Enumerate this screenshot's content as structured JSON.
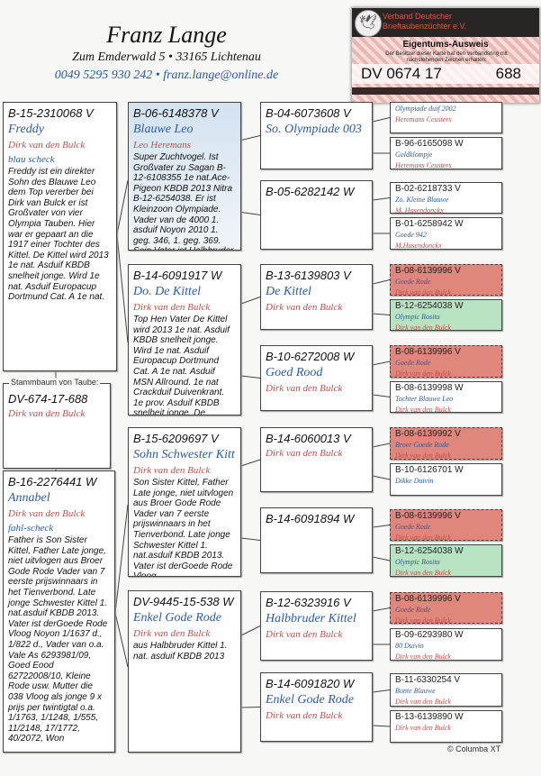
{
  "header": {
    "name": "Franz Lange",
    "address": "Zum Emderwald 5 • 33165  Lichtenau",
    "contact": "0049 5295 930 242 • franz.lange@online.de"
  },
  "card": {
    "org_line1": "Verband Deutscher",
    "org_line2": "Brieftaubenzüchter e.V.",
    "title": "Eigentums-Ausweis",
    "subtitle": "Der Besitzer dieser Karte hat den Verbandsring mit nachstehenden Zeichen erhalten:",
    "ring_prefix": "DV 0674 17",
    "ring_number": "688",
    "logo_icon": "pigeon-logo"
  },
  "subject": {
    "label": "Stammbaum von Taube:",
    "ring": "DV-674-17-688",
    "breeder": "Dirk van den Bulck"
  },
  "father": {
    "ring": "B-15-2310068 V",
    "name": "Freddy",
    "breeder": "Dirk van den Bulck",
    "color": "blau scheck",
    "text": "Freddy ist ein direkter Sohn des Blauwe Leo dem Top vererber bei Dirk van Bulck er ist Großvater von vier Olympia Tauben. Hier war er gepaart an die 1917 einer Tochter des Kittel. De Kittel wird 2013 1e nat. Asduif KBDB snelheit jonge. Wird 1e nat. Asduif Europacup Dortmund Cat. A 1e nat."
  },
  "mother": {
    "ring": "B-16-2276441 W",
    "name": "Annabel",
    "breeder": "Dirk van den Bulck",
    "color": "fahl-scheck",
    "text": "Father is Son Sister Kittel, Father Late jonge, niet uitvlogen  aus  Broer Gode Rode Vader van 7 eerste prijswinnaars in het Tienverbond. Late jonge Schwester Kittel 1. nat.asduif KBDB 2013. Vater ist derGoede Rode Vloog Noyon 1/1637 d., 1/822 d., Vader van o.a. Vale As 6293981/09, Goed Eood 62722008/10, Kleine Rode usw. Mutter die 038 Vloog als jonge 9 x prijs per twintigtal o.a. 1/1763, 1/1248, 1/555, 11/2148, 17/1772, 40/2072, Won"
  },
  "grandparents": [
    {
      "ring": "B-06-6148378 V",
      "name": "Blauwe Leo",
      "breeder": "Leo Heremans",
      "text": "Super Zuchtvogel. Ist Großvater zu Sagan B-12-6108355 1e nat.Ace-Pigeon KBDB 2013 Nitra B-12-6254038. Er ist Kleinzoon Olympiade. Vader van de 4000 1. asduif Noyon 2010 1. geg. 346, 1. geg. 369. Sein Vater ist Halbbruder"
    },
    {
      "ring": "B-14-6091917 W",
      "name": "Do. De Kittel",
      "breeder": "Dirk van den Bulck",
      "text": "Top Hen Vater De Kittel wird 2013 1e nat. Asduif KBDB snelheit jonge. Wird 1e nat. Asduif Europacup Dortmund Cat. A 1e nat. Asduif MSN Allround. 1e nat Crackduif Duivenkrant. 1e prov. Asduif KBDB snelheit jonge. De"
    },
    {
      "ring": "B-15-6209697 V",
      "name": "Sohn Schwester Kitt",
      "breeder": "Dirk van den Bulck",
      "text": "Son Sister Kittel, Father Late jonge, niet uitvlogen  aus  Broer Gode Rode Vader van 7 eerste prijswinnaars in het Tienverbond. Late jonge Schwester Kittel 1. nat.asduif KBDB 2013. Vater ist derGoede Rode Vloog"
    },
    {
      "ring": "DV-9445-15-538 W",
      "name": "Enkel Gode Rode",
      "breeder": "Dirk van den Bulck",
      "text": "aus Halbbruder Kittel 1. nat. asduif KBDB 2013"
    }
  ],
  "great_grandparents": [
    {
      "ring": "B-04-6073608 V",
      "name": "So. Olympiade 003",
      "breeder": ""
    },
    {
      "ring": "B-05-6282142 W",
      "name": "",
      "breeder": ""
    },
    {
      "ring": "B-13-6139803 V",
      "name": "De Kittel",
      "breeder": "Dirk van den Bulck"
    },
    {
      "ring": "B-10-6272008 W",
      "name": "Goed Rood",
      "breeder": "Dirk van den Bulck"
    },
    {
      "ring": "B-14-6060013 V",
      "name": "",
      "breeder": "Dirk van den Bulck"
    },
    {
      "ring": "B-14-6091894 W",
      "name": "",
      "breeder": ""
    },
    {
      "ring": "B-12-6323916 V",
      "name": "Halbbruder Kittel",
      "breeder": "Dirk van den Bulck"
    },
    {
      "ring": "B-14-6091820 W",
      "name": "Enkel Gode Rode",
      "breeder": "Dirk van den Bulck"
    }
  ],
  "great_great_grandparents": [
    {
      "ring": "",
      "name": "Olympiade duif 2002",
      "breeder": "Heremans Ceusters",
      "highlight": "none"
    },
    {
      "ring": "B-96-6165098 W",
      "name": "Goldklompje",
      "breeder": "Heremans Ceusters",
      "highlight": "none"
    },
    {
      "ring": "B-02-6218733 V",
      "name": "Zo. Kleine Blauwe",
      "breeder": "M. Hasendonckx",
      "highlight": "none"
    },
    {
      "ring": "B-01-6258942 W",
      "name": "Goede 942",
      "breeder": "M.Hasendonckx",
      "highlight": "none"
    },
    {
      "ring": "B-08-6139996 V",
      "name": "Goede Rode",
      "breeder": "Dirk van den Bulck",
      "highlight": "red"
    },
    {
      "ring": "B-12-6254038 W",
      "name": "Olympic Rosita",
      "breeder": "Dirk van den Bulck",
      "highlight": "green"
    },
    {
      "ring": "B-08-6139996 V",
      "name": "Goede Rode",
      "breeder": "Dirk van den Bulck",
      "highlight": "red"
    },
    {
      "ring": "B-08-6139998 W",
      "name": "Tochter Blauwe Leo",
      "breeder": "Dirk van den Bulck",
      "highlight": "none"
    },
    {
      "ring": "B-08-6139992 V",
      "name": "Broer Goede Rode",
      "breeder": "Dirk van den Bulck",
      "highlight": "red"
    },
    {
      "ring": "B-10-6126701 W",
      "name": "Dikke Duivin",
      "breeder": "",
      "highlight": "none"
    },
    {
      "ring": "B-08-6139996 V",
      "name": "Goede Rode",
      "breeder": "Dirk van den Bulck",
      "highlight": "red"
    },
    {
      "ring": "B-12-6254038 W",
      "name": "Olympic Rosita",
      "breeder": "Dirk van den Bulck",
      "highlight": "green"
    },
    {
      "ring": "B-08-6139996 V",
      "name": "Goede Rode",
      "breeder": "Dirk van den Bulck",
      "highlight": "red"
    },
    {
      "ring": "B-09-6293980 W",
      "name": "80 Duivin",
      "breeder": "Dirk van den Bulck",
      "highlight": "none"
    },
    {
      "ring": "B-11-6330254 V",
      "name": "Bonte Blauwe",
      "breeder": "Dirk van den Bulck",
      "highlight": "none"
    },
    {
      "ring": "B-13-6139890 W",
      "name": "",
      "breeder": "Dirk van den Bulck",
      "highlight": "none"
    }
  ],
  "colors": {
    "name": "#2a5ba8",
    "breeder": "#c0504d",
    "highlight_red": "#e0867c",
    "highlight_green": "#b7e3c2"
  },
  "footer": {
    "copyright": "© Columba XT"
  }
}
